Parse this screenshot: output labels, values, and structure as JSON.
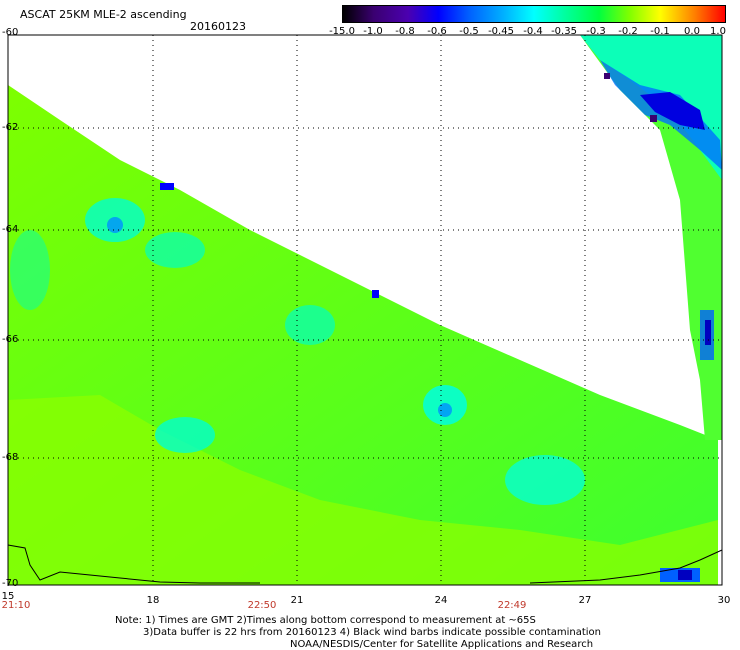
{
  "header": {
    "title": "ASCAT 25KM MLE-2 ascending",
    "date": "20160123"
  },
  "colorbar": {
    "labels": [
      "-15.0",
      "-1.0",
      "-0.8",
      "-0.6",
      "-0.5",
      "-0.45",
      "-0.4",
      "-0.35",
      "-0.3",
      "-0.2",
      "-0.1",
      "0.0",
      "1.0"
    ],
    "colors": [
      "#000000",
      "#3a0070",
      "#4b00b0",
      "#0000ff",
      "#0060ff",
      "#00b0ff",
      "#00ffff",
      "#00ffa0",
      "#00ff40",
      "#80ff00",
      "#ffff00",
      "#ff8000",
      "#ff0000"
    ]
  },
  "axes": {
    "lat_labels": [
      "-60",
      "-62",
      "-64",
      "-66",
      "-68",
      "-70"
    ],
    "lon_labels": [
      "15",
      "18",
      "21",
      "24",
      "27",
      "30"
    ],
    "time_labels": [
      "21:10",
      "22:50",
      "22:49"
    ]
  },
  "notes": {
    "line1": "Note: 1) Times are GMT 2)Times along bottom correspond to measurement at ~65S",
    "line2": "3)Data buffer is 22 hrs from 20160123 4) Black wind barbs indicate possible contamination",
    "line3": "NOAA/NESDIS/Center for Satellite Applications and Research"
  }
}
